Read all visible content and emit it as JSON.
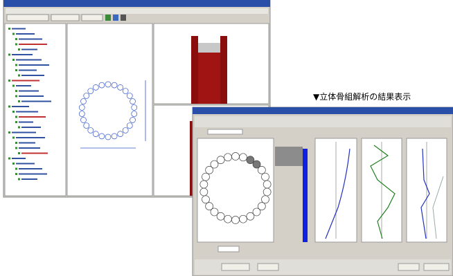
{
  "caption": "▼立体骨組解析の結果表示"
}
